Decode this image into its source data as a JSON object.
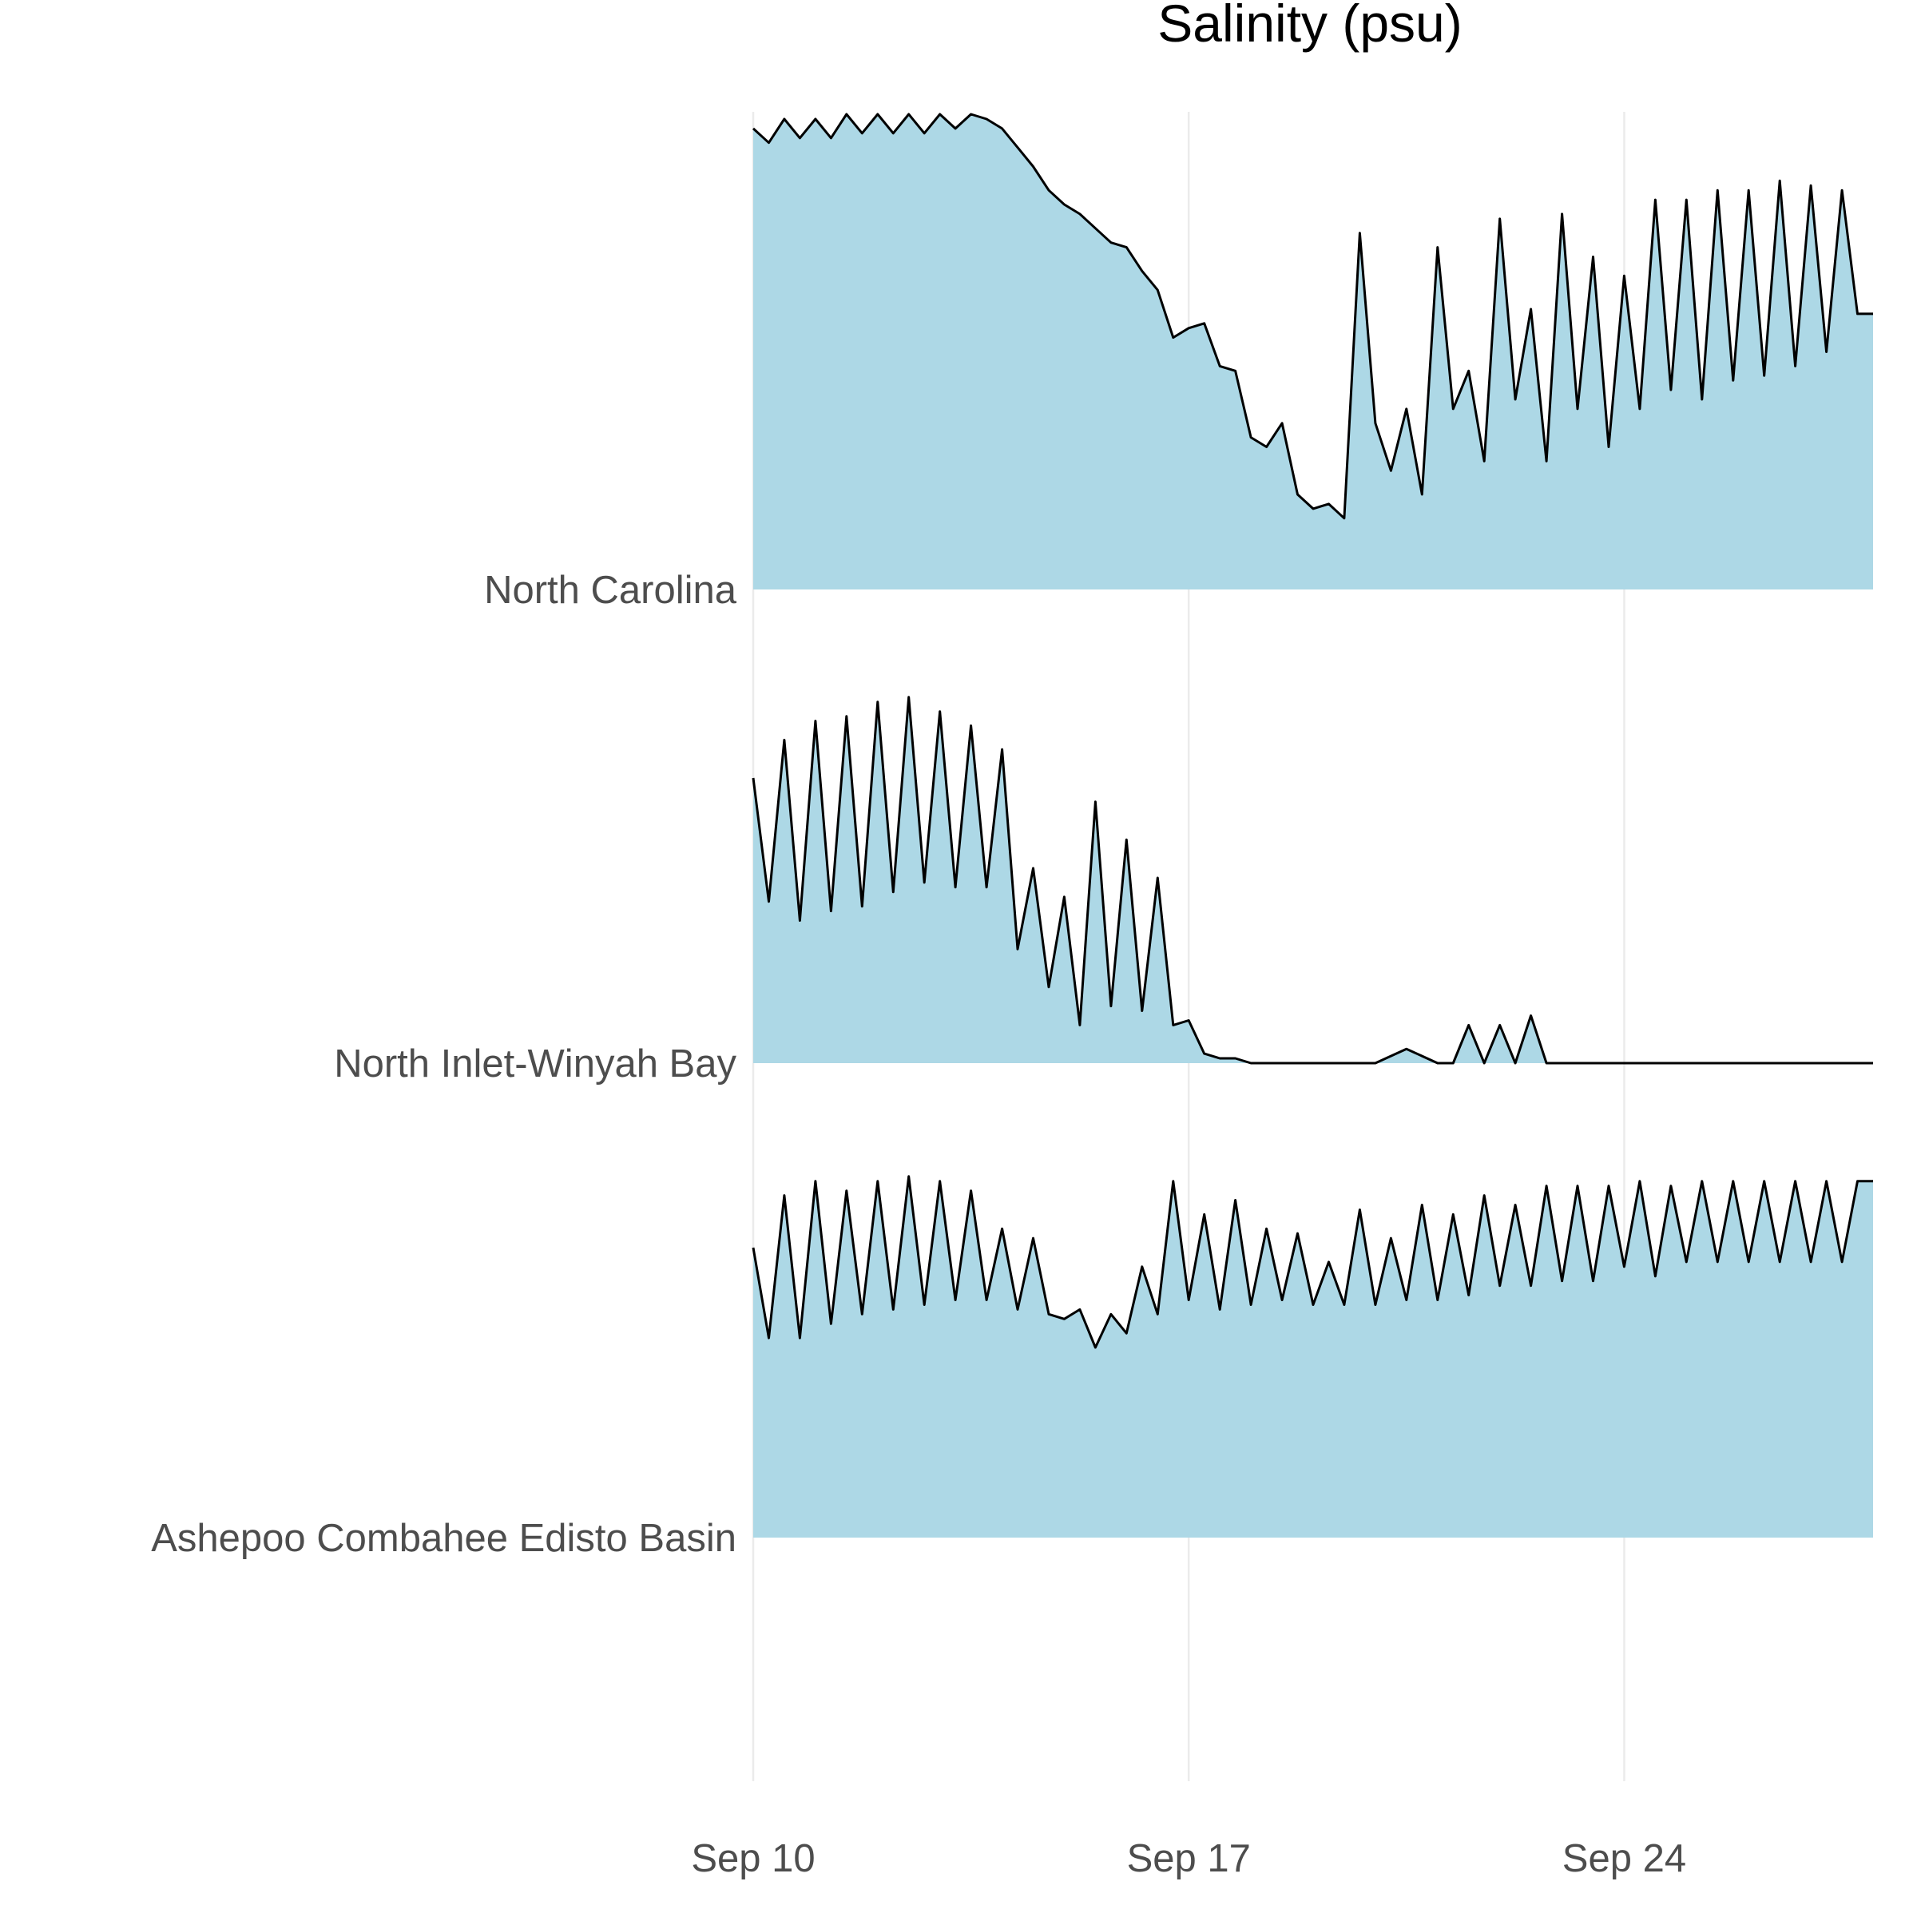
{
  "chart_data": {
    "type": "area",
    "title": "Salinity (psu)",
    "xlabel": "",
    "ylabel": "",
    "layout": "ridgeline",
    "x_axis": {
      "type": "date",
      "start": "2018-09-10",
      "end": "2018-09-28",
      "tick_labels": [
        "Sep 10",
        "Sep 17",
        "Sep 24"
      ],
      "tick_dates": [
        "2018-09-10",
        "2018-09-17",
        "2018-09-24"
      ]
    },
    "grid": "vertical-major",
    "fill_color": "#add8e6",
    "line_color": "#000000",
    "grid_color": "#ebebeb",
    "series": [
      {
        "name": "North Carolina",
        "values_note": "relative salinity level, 0 = row baseline, 1 = row max",
        "points": [
          [
            "2018-09-10T00",
            0.97
          ],
          [
            "2018-09-10T06",
            0.94
          ],
          [
            "2018-09-10T12",
            0.99
          ],
          [
            "2018-09-10T18",
            0.95
          ],
          [
            "2018-09-11T00",
            0.99
          ],
          [
            "2018-09-11T06",
            0.95
          ],
          [
            "2018-09-11T12",
            1.0
          ],
          [
            "2018-09-11T18",
            0.96
          ],
          [
            "2018-09-12T00",
            1.0
          ],
          [
            "2018-09-12T06",
            0.96
          ],
          [
            "2018-09-12T12",
            1.0
          ],
          [
            "2018-09-12T18",
            0.96
          ],
          [
            "2018-09-13T00",
            1.0
          ],
          [
            "2018-09-13T06",
            0.97
          ],
          [
            "2018-09-13T12",
            1.0
          ],
          [
            "2018-09-13T18",
            0.99
          ],
          [
            "2018-09-14T00",
            0.97
          ],
          [
            "2018-09-14T06",
            0.93
          ],
          [
            "2018-09-14T12",
            0.89
          ],
          [
            "2018-09-14T18",
            0.84
          ],
          [
            "2018-09-15T00",
            0.81
          ],
          [
            "2018-09-15T06",
            0.79
          ],
          [
            "2018-09-15T12",
            0.76
          ],
          [
            "2018-09-15T18",
            0.73
          ],
          [
            "2018-09-16T00",
            0.72
          ],
          [
            "2018-09-16T06",
            0.67
          ],
          [
            "2018-09-16T12",
            0.63
          ],
          [
            "2018-09-16T18",
            0.53
          ],
          [
            "2018-09-17T00",
            0.55
          ],
          [
            "2018-09-17T06",
            0.56
          ],
          [
            "2018-09-17T12",
            0.47
          ],
          [
            "2018-09-17T18",
            0.46
          ],
          [
            "2018-09-18T00",
            0.32
          ],
          [
            "2018-09-18T06",
            0.3
          ],
          [
            "2018-09-18T12",
            0.35
          ],
          [
            "2018-09-18T18",
            0.2
          ],
          [
            "2018-09-19T00",
            0.17
          ],
          [
            "2018-09-19T06",
            0.18
          ],
          [
            "2018-09-19T12",
            0.15
          ],
          [
            "2018-09-19T18",
            0.75
          ],
          [
            "2018-09-20T00",
            0.35
          ],
          [
            "2018-09-20T06",
            0.25
          ],
          [
            "2018-09-20T12",
            0.38
          ],
          [
            "2018-09-20T18",
            0.2
          ],
          [
            "2018-09-21T00",
            0.72
          ],
          [
            "2018-09-21T06",
            0.38
          ],
          [
            "2018-09-21T12",
            0.46
          ],
          [
            "2018-09-21T18",
            0.27
          ],
          [
            "2018-09-22T00",
            0.78
          ],
          [
            "2018-09-22T06",
            0.4
          ],
          [
            "2018-09-22T12",
            0.59
          ],
          [
            "2018-09-22T18",
            0.27
          ],
          [
            "2018-09-23T00",
            0.79
          ],
          [
            "2018-09-23T06",
            0.38
          ],
          [
            "2018-09-23T12",
            0.7
          ],
          [
            "2018-09-23T18",
            0.3
          ],
          [
            "2018-09-24T00",
            0.66
          ],
          [
            "2018-09-24T06",
            0.38
          ],
          [
            "2018-09-24T12",
            0.82
          ],
          [
            "2018-09-24T18",
            0.42
          ],
          [
            "2018-09-25T00",
            0.82
          ],
          [
            "2018-09-25T06",
            0.4
          ],
          [
            "2018-09-25T12",
            0.84
          ],
          [
            "2018-09-25T18",
            0.44
          ],
          [
            "2018-09-26T00",
            0.84
          ],
          [
            "2018-09-26T06",
            0.45
          ],
          [
            "2018-09-26T12",
            0.86
          ],
          [
            "2018-09-26T18",
            0.47
          ],
          [
            "2018-09-27T00",
            0.85
          ],
          [
            "2018-09-27T06",
            0.5
          ],
          [
            "2018-09-27T12",
            0.84
          ],
          [
            "2018-09-27T18",
            0.58
          ],
          [
            "2018-09-28T00",
            0.58
          ]
        ]
      },
      {
        "name": "North Inlet-Winyah Bay",
        "values_note": "relative salinity level, 0 = row baseline, 1 = row max",
        "points": [
          [
            "2018-09-10T00",
            0.6
          ],
          [
            "2018-09-10T06",
            0.34
          ],
          [
            "2018-09-10T12",
            0.68
          ],
          [
            "2018-09-10T18",
            0.3
          ],
          [
            "2018-09-11T00",
            0.72
          ],
          [
            "2018-09-11T06",
            0.32
          ],
          [
            "2018-09-11T12",
            0.73
          ],
          [
            "2018-09-11T18",
            0.33
          ],
          [
            "2018-09-12T00",
            0.76
          ],
          [
            "2018-09-12T06",
            0.36
          ],
          [
            "2018-09-12T12",
            0.77
          ],
          [
            "2018-09-12T18",
            0.38
          ],
          [
            "2018-09-13T00",
            0.74
          ],
          [
            "2018-09-13T06",
            0.37
          ],
          [
            "2018-09-13T12",
            0.71
          ],
          [
            "2018-09-13T18",
            0.37
          ],
          [
            "2018-09-14T00",
            0.66
          ],
          [
            "2018-09-14T06",
            0.24
          ],
          [
            "2018-09-14T12",
            0.41
          ],
          [
            "2018-09-14T18",
            0.16
          ],
          [
            "2018-09-15T00",
            0.35
          ],
          [
            "2018-09-15T06",
            0.08
          ],
          [
            "2018-09-15T12",
            0.55
          ],
          [
            "2018-09-15T18",
            0.12
          ],
          [
            "2018-09-16T00",
            0.47
          ],
          [
            "2018-09-16T06",
            0.11
          ],
          [
            "2018-09-16T12",
            0.39
          ],
          [
            "2018-09-16T18",
            0.08
          ],
          [
            "2018-09-17T00",
            0.09
          ],
          [
            "2018-09-17T06",
            0.02
          ],
          [
            "2018-09-17T12",
            0.01
          ],
          [
            "2018-09-17T18",
            0.01
          ],
          [
            "2018-09-18T00",
            0.0
          ],
          [
            "2018-09-19T00",
            0.0
          ],
          [
            "2018-09-20T00",
            0.0
          ],
          [
            "2018-09-20T12",
            0.03
          ],
          [
            "2018-09-21T00",
            0.0
          ],
          [
            "2018-09-21T06",
            0.0
          ],
          [
            "2018-09-21T12",
            0.08
          ],
          [
            "2018-09-21T18",
            0.0
          ],
          [
            "2018-09-22T00",
            0.08
          ],
          [
            "2018-09-22T06",
            0.0
          ],
          [
            "2018-09-22T12",
            0.1
          ],
          [
            "2018-09-22T18",
            0.0
          ],
          [
            "2018-09-23T00",
            0.0
          ],
          [
            "2018-09-24T00",
            0.0
          ],
          [
            "2018-09-25T00",
            0.0
          ],
          [
            "2018-09-26T00",
            0.0
          ],
          [
            "2018-09-27T00",
            0.0
          ],
          [
            "2018-09-28T00",
            0.0
          ]
        ]
      },
      {
        "name": "Ashepoo Combahee Edisto Basin",
        "values_note": "relative salinity level, 0 = row baseline, 1 = row max",
        "points": [
          [
            "2018-09-10T00",
            0.61
          ],
          [
            "2018-09-10T06",
            0.42
          ],
          [
            "2018-09-10T12",
            0.72
          ],
          [
            "2018-09-10T18",
            0.42
          ],
          [
            "2018-09-11T00",
            0.75
          ],
          [
            "2018-09-11T06",
            0.45
          ],
          [
            "2018-09-11T12",
            0.73
          ],
          [
            "2018-09-11T18",
            0.47
          ],
          [
            "2018-09-12T00",
            0.75
          ],
          [
            "2018-09-12T06",
            0.48
          ],
          [
            "2018-09-12T12",
            0.76
          ],
          [
            "2018-09-12T18",
            0.49
          ],
          [
            "2018-09-13T00",
            0.75
          ],
          [
            "2018-09-13T06",
            0.5
          ],
          [
            "2018-09-13T12",
            0.73
          ],
          [
            "2018-09-13T18",
            0.5
          ],
          [
            "2018-09-14T00",
            0.65
          ],
          [
            "2018-09-14T06",
            0.48
          ],
          [
            "2018-09-14T12",
            0.63
          ],
          [
            "2018-09-14T18",
            0.47
          ],
          [
            "2018-09-15T00",
            0.46
          ],
          [
            "2018-09-15T06",
            0.48
          ],
          [
            "2018-09-15T12",
            0.4
          ],
          [
            "2018-09-15T18",
            0.47
          ],
          [
            "2018-09-16T00",
            0.43
          ],
          [
            "2018-09-16T06",
            0.57
          ],
          [
            "2018-09-16T12",
            0.47
          ],
          [
            "2018-09-16T18",
            0.75
          ],
          [
            "2018-09-17T00",
            0.5
          ],
          [
            "2018-09-17T06",
            0.68
          ],
          [
            "2018-09-17T12",
            0.48
          ],
          [
            "2018-09-17T18",
            0.71
          ],
          [
            "2018-09-18T00",
            0.49
          ],
          [
            "2018-09-18T06",
            0.65
          ],
          [
            "2018-09-18T12",
            0.5
          ],
          [
            "2018-09-18T18",
            0.64
          ],
          [
            "2018-09-19T00",
            0.49
          ],
          [
            "2018-09-19T06",
            0.58
          ],
          [
            "2018-09-19T12",
            0.49
          ],
          [
            "2018-09-19T18",
            0.69
          ],
          [
            "2018-09-20T00",
            0.49
          ],
          [
            "2018-09-20T06",
            0.63
          ],
          [
            "2018-09-20T12",
            0.5
          ],
          [
            "2018-09-20T18",
            0.7
          ],
          [
            "2018-09-21T00",
            0.5
          ],
          [
            "2018-09-21T06",
            0.68
          ],
          [
            "2018-09-21T12",
            0.51
          ],
          [
            "2018-09-21T18",
            0.72
          ],
          [
            "2018-09-22T00",
            0.53
          ],
          [
            "2018-09-22T06",
            0.7
          ],
          [
            "2018-09-22T12",
            0.53
          ],
          [
            "2018-09-22T18",
            0.74
          ],
          [
            "2018-09-23T00",
            0.54
          ],
          [
            "2018-09-23T06",
            0.74
          ],
          [
            "2018-09-23T12",
            0.54
          ],
          [
            "2018-09-23T18",
            0.74
          ],
          [
            "2018-09-24T00",
            0.57
          ],
          [
            "2018-09-24T06",
            0.75
          ],
          [
            "2018-09-24T12",
            0.55
          ],
          [
            "2018-09-24T18",
            0.74
          ],
          [
            "2018-09-25T00",
            0.58
          ],
          [
            "2018-09-25T06",
            0.75
          ],
          [
            "2018-09-25T12",
            0.58
          ],
          [
            "2018-09-25T18",
            0.75
          ],
          [
            "2018-09-26T00",
            0.58
          ],
          [
            "2018-09-26T06",
            0.75
          ],
          [
            "2018-09-26T12",
            0.58
          ],
          [
            "2018-09-26T18",
            0.75
          ],
          [
            "2018-09-27T00",
            0.58
          ],
          [
            "2018-09-27T06",
            0.75
          ],
          [
            "2018-09-27T12",
            0.58
          ],
          [
            "2018-09-27T18",
            0.75
          ],
          [
            "2018-09-28T00",
            0.75
          ]
        ]
      }
    ]
  }
}
